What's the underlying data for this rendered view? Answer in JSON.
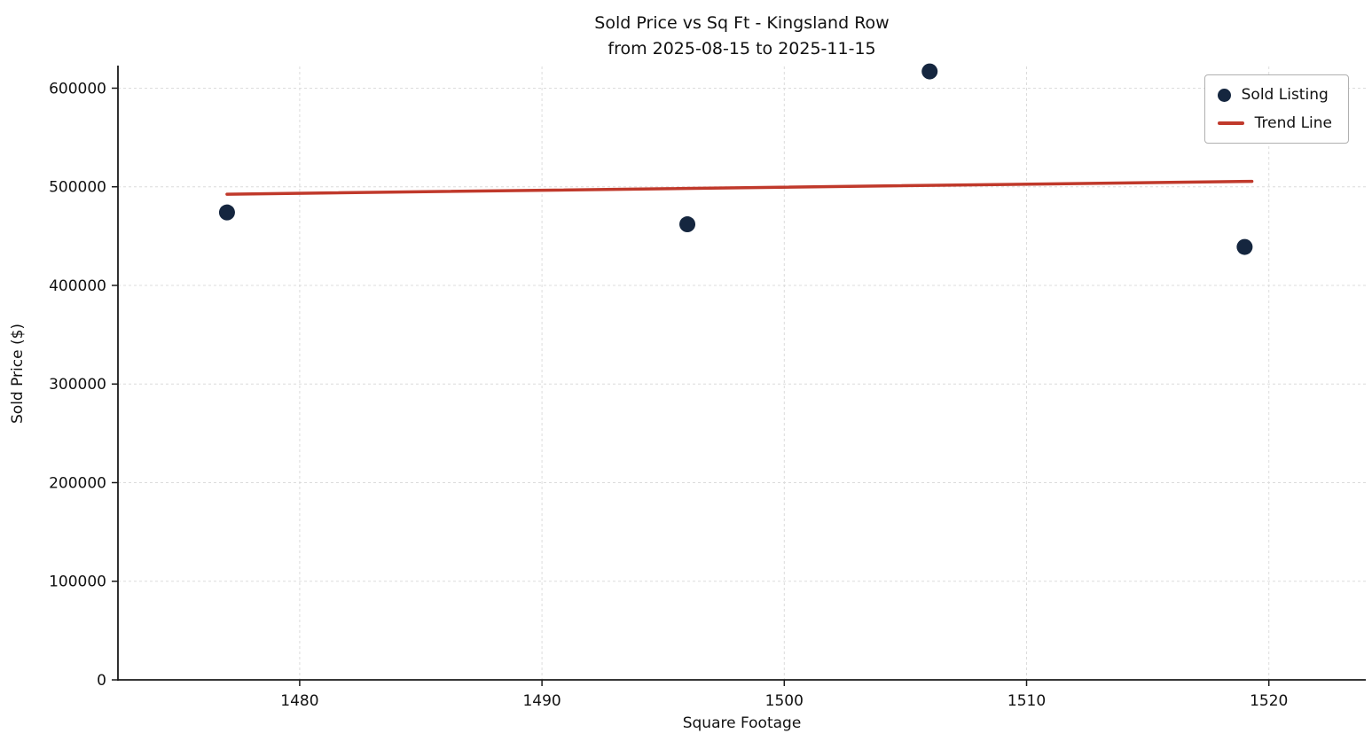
{
  "chart_data": {
    "type": "scatter",
    "title": "Sold Price vs Sq Ft - Kingsland Row",
    "subtitle": "from 2025-08-15 to 2025-11-15",
    "xlabel": "Square Footage",
    "ylabel": "Sold Price ($)",
    "xlim": [
      1472.5,
      1524
    ],
    "ylim": [
      0,
      622000
    ],
    "xticks": [
      1480,
      1490,
      1500,
      1510,
      1520
    ],
    "yticks": [
      0,
      100000,
      200000,
      300000,
      400000,
      500000,
      600000
    ],
    "grid": true,
    "legend_position": "upper right",
    "series": [
      {
        "name": "Sold Listing",
        "kind": "scatter",
        "x": [
          1477,
          1496,
          1506,
          1519
        ],
        "y": [
          474000,
          462000,
          617000,
          439000
        ]
      },
      {
        "name": "Trend Line",
        "kind": "line",
        "x": [
          1477,
          1519.3
        ],
        "y": [
          492500,
          505500
        ]
      }
    ],
    "colors": {
      "point": "#15263f",
      "trend": "#c0392b",
      "grid": "#dcdcdc",
      "axis": "#1a1a1a"
    }
  }
}
